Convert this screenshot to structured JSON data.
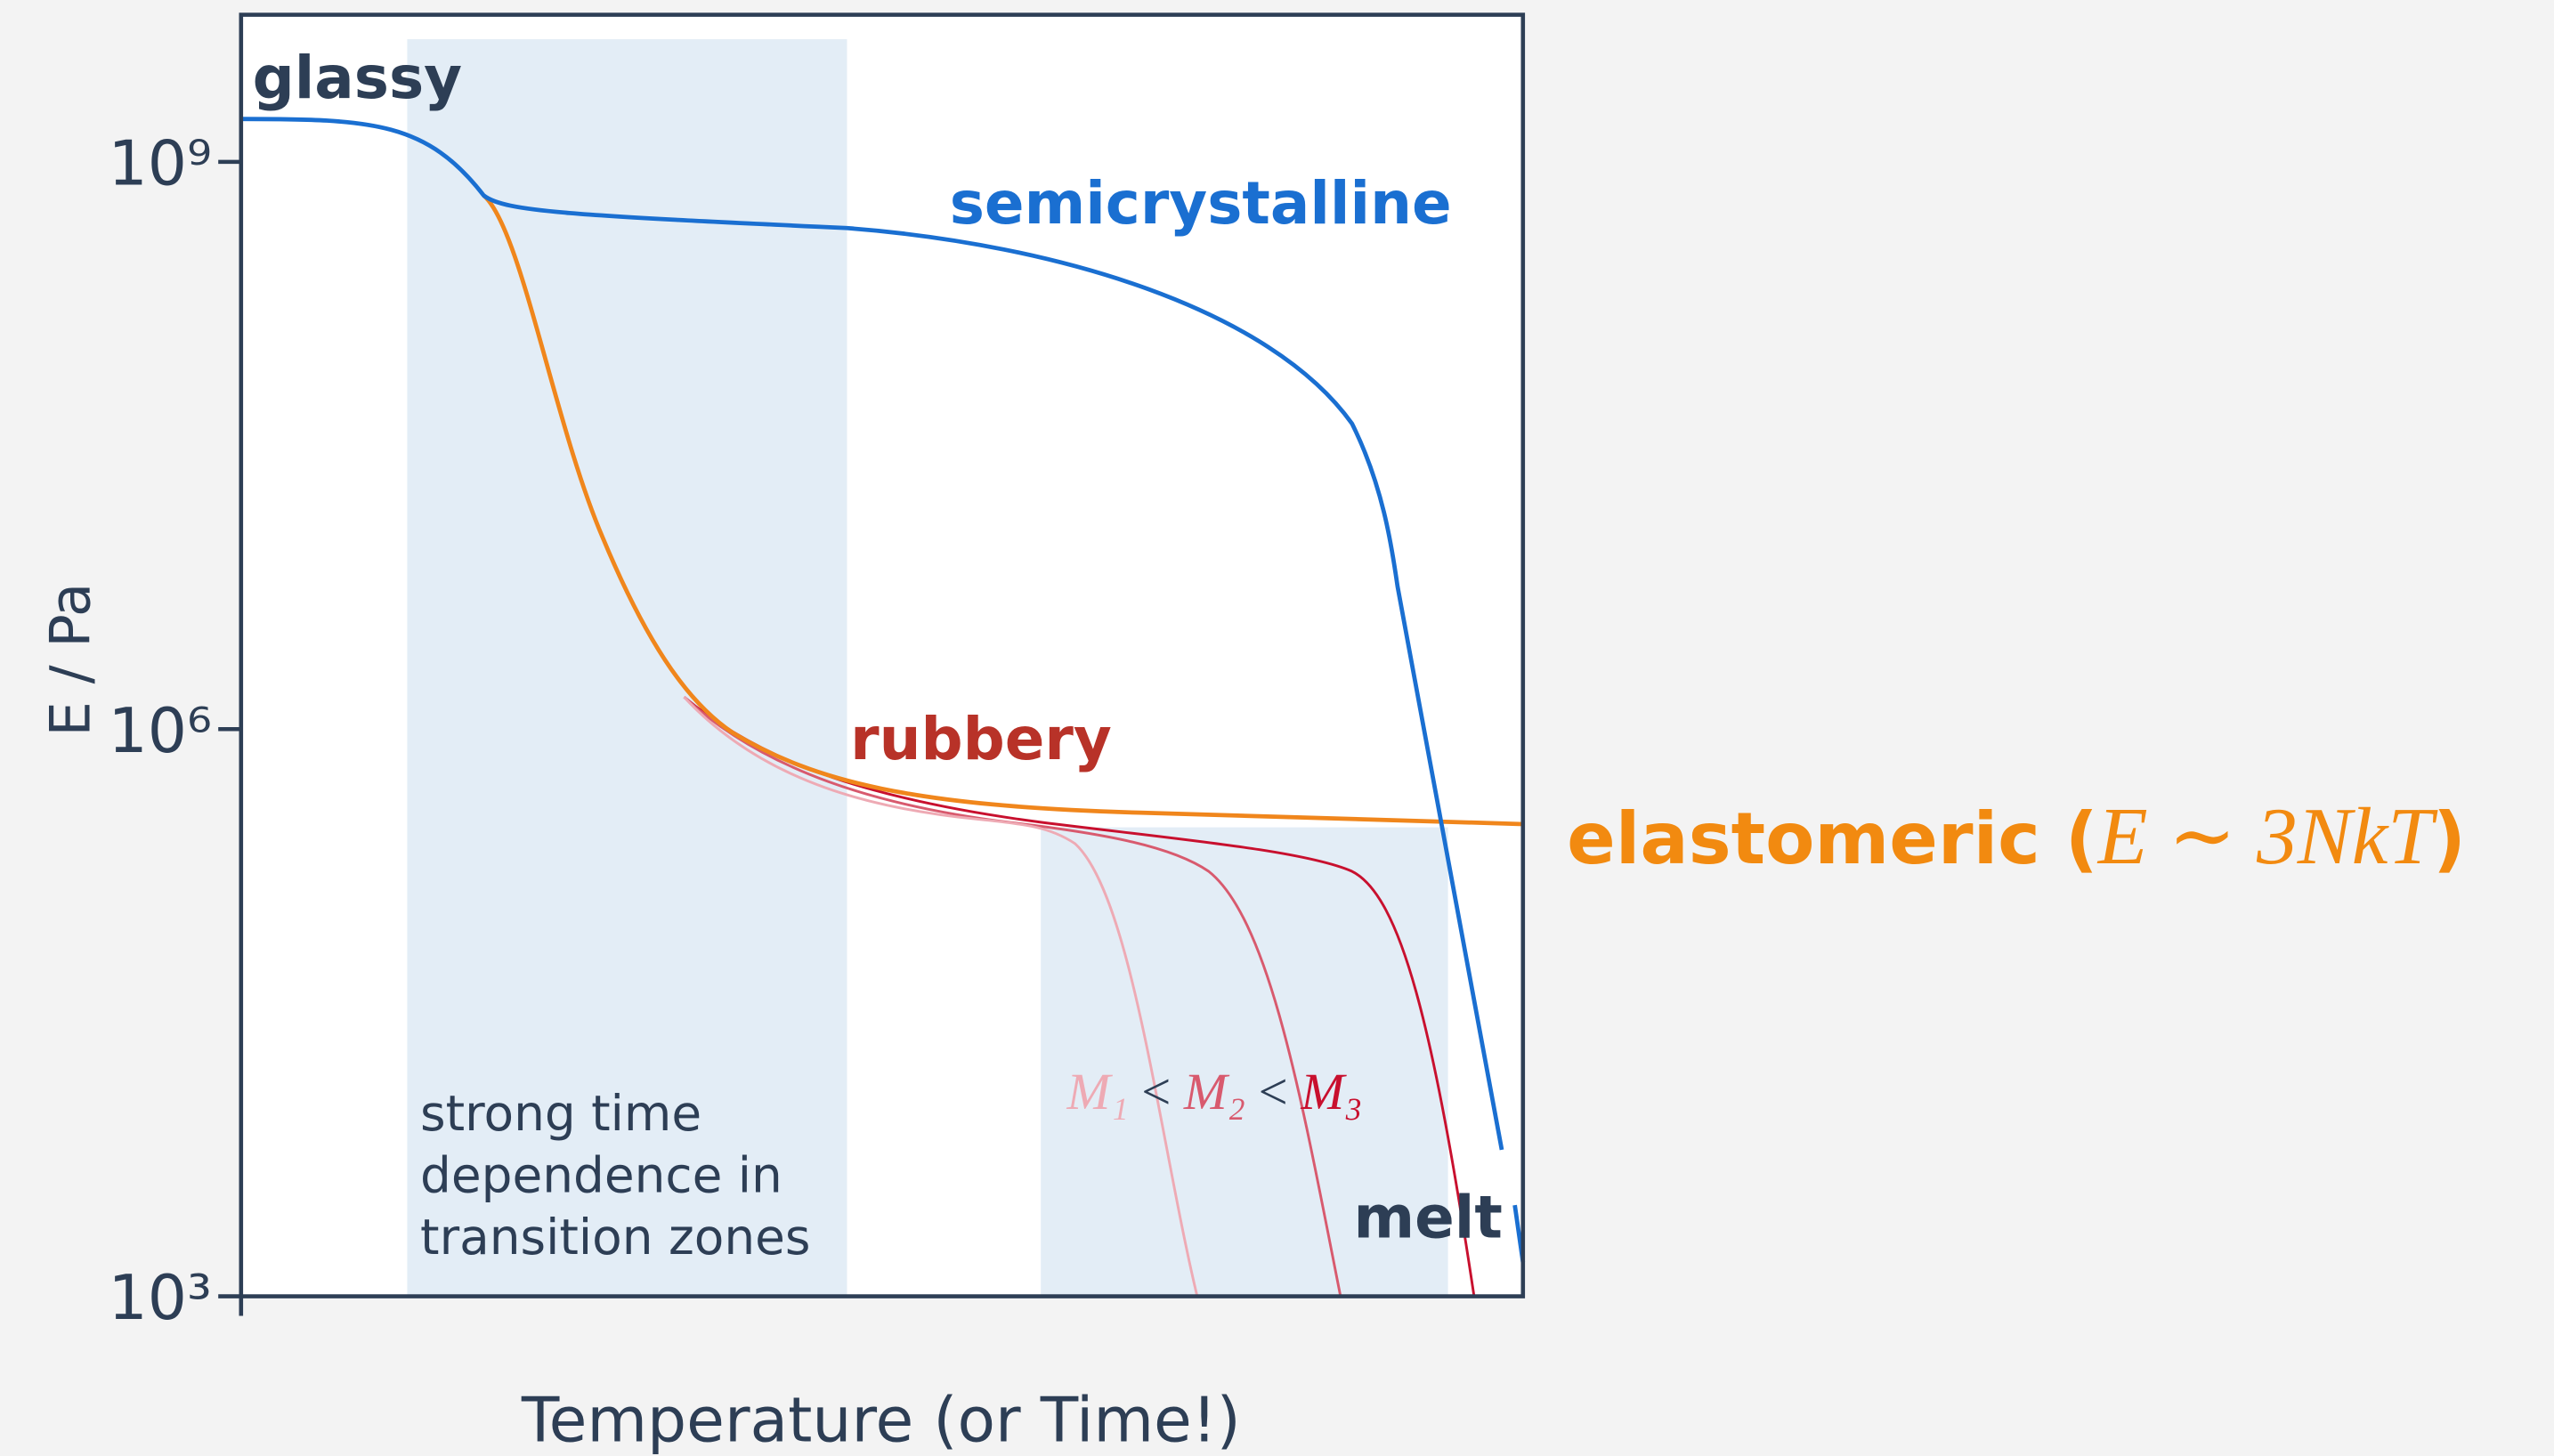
{
  "axes": {
    "y_label": "E / Pa",
    "x_label": "Temperature (or Time!)",
    "ylim": [
      1000,
      6000000000
    ],
    "log_scale": true,
    "yticks": [
      {
        "value": 1000000000,
        "label": "10⁹"
      },
      {
        "value": 1000000,
        "label": "10⁶"
      },
      {
        "value": 1000,
        "label": "10³"
      }
    ]
  },
  "labels": {
    "glassy": "glassy",
    "semicrystalline": "semicrystalline",
    "rubbery": "rubbery",
    "elastomeric": "elastomeric (",
    "elastomeric_formula": "E ∼ 3NkT",
    "elastomeric_close": ")",
    "melt": "melt",
    "molar_mass": [
      "M₁",
      "<",
      "M₂",
      "<",
      "M₃"
    ],
    "note": [
      "strong time",
      "dependence in",
      "transition zones"
    ]
  }
}
